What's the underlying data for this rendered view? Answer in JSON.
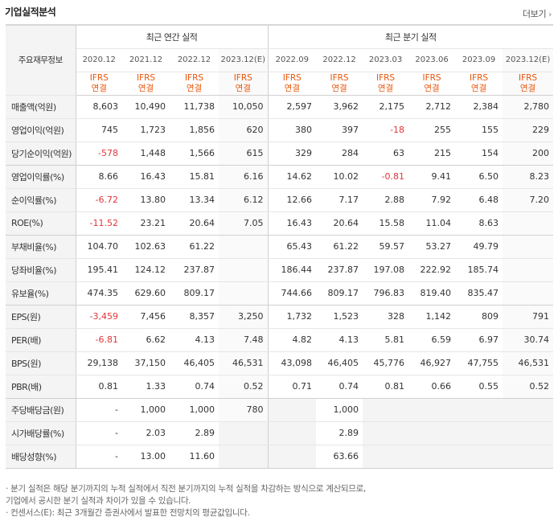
{
  "title": "기업실적분석",
  "more_label": "더보기",
  "header": {
    "row_header": "주요재무정보",
    "annual_group": "최근 연간 실적",
    "quarter_group": "최근 분기 실적",
    "periods": [
      "2020.12",
      "2021.12",
      "2022.12",
      "2023.12(E)",
      "2022.09",
      "2022.12",
      "2023.03",
      "2023.06",
      "2023.09",
      "2023.12(E)"
    ],
    "ifrs_top": "IFRS",
    "ifrs_bottom": "연결"
  },
  "rows": [
    {
      "label": "매출액(억원)",
      "values": [
        "8,603",
        "10,490",
        "11,738",
        "10,050",
        "2,597",
        "3,962",
        "2,175",
        "2,712",
        "2,384",
        "2,780"
      ]
    },
    {
      "label": "영업이익(억원)",
      "values": [
        "745",
        "1,723",
        "1,856",
        "620",
        "380",
        "397",
        "-18",
        "255",
        "155",
        "229"
      ]
    },
    {
      "label": "당기순이익(억원)",
      "values": [
        "-578",
        "1,448",
        "1,566",
        "615",
        "329",
        "284",
        "63",
        "215",
        "154",
        "200"
      ]
    },
    {
      "label": "영업이익률(%)",
      "values": [
        "8.66",
        "16.43",
        "15.81",
        "6.16",
        "14.62",
        "10.02",
        "-0.81",
        "9.41",
        "6.50",
        "8.23"
      ]
    },
    {
      "label": "순이익률(%)",
      "values": [
        "-6.72",
        "13.80",
        "13.34",
        "6.12",
        "12.66",
        "7.17",
        "2.88",
        "7.92",
        "6.48",
        "7.20"
      ]
    },
    {
      "label": "ROE(%)",
      "values": [
        "-11.52",
        "23.21",
        "20.64",
        "7.05",
        "16.43",
        "20.64",
        "15.58",
        "11.04",
        "8.63",
        ""
      ]
    },
    {
      "label": "부채비율(%)",
      "values": [
        "104.70",
        "102.63",
        "61.22",
        "",
        "65.43",
        "61.22",
        "59.57",
        "53.27",
        "49.79",
        ""
      ]
    },
    {
      "label": "당좌비율(%)",
      "values": [
        "195.41",
        "124.12",
        "237.87",
        "",
        "186.44",
        "237.87",
        "197.08",
        "222.92",
        "185.74",
        ""
      ]
    },
    {
      "label": "유보율(%)",
      "values": [
        "474.35",
        "629.60",
        "809.17",
        "",
        "744.66",
        "809.17",
        "796.83",
        "819.40",
        "835.47",
        ""
      ]
    },
    {
      "label": "EPS(원)",
      "values": [
        "-3,459",
        "7,456",
        "8,357",
        "3,250",
        "1,732",
        "1,523",
        "328",
        "1,142",
        "809",
        "791"
      ]
    },
    {
      "label": "PER(배)",
      "values": [
        "-6.81",
        "6.62",
        "4.13",
        "7.48",
        "4.82",
        "4.13",
        "5.81",
        "6.59",
        "6.97",
        "30.74"
      ]
    },
    {
      "label": "BPS(원)",
      "values": [
        "29,138",
        "37,150",
        "46,405",
        "46,531",
        "43,098",
        "46,405",
        "45,776",
        "46,927",
        "47,755",
        "46,531"
      ]
    },
    {
      "label": "PBR(배)",
      "values": [
        "0.81",
        "1.33",
        "0.74",
        "0.52",
        "0.71",
        "0.74",
        "0.81",
        "0.66",
        "0.55",
        "0.52"
      ]
    },
    {
      "label": "주당배당금(원)",
      "values": [
        "-",
        "1,000",
        "1,000",
        "780",
        "",
        "1,000",
        "",
        "",
        "",
        ""
      ]
    },
    {
      "label": "시가배당률(%)",
      "values": [
        "-",
        "2.03",
        "2.89",
        "",
        "",
        "2.89",
        "",
        "",
        "",
        ""
      ]
    },
    {
      "label": "배당성향(%)",
      "values": [
        "-",
        "13.00",
        "11.60",
        "",
        "",
        "63.66",
        "",
        "",
        "",
        ""
      ]
    }
  ],
  "notes": [
    "· 분기 실적은 해당 분기까지의 누적 실적에서 직전 분기까지의 누적 실적을 차감하는 방식으로 계산되므로,",
    "   기업에서 공시한 분기 실적과 차이가 있을 수 있습니다.",
    "· 컨센서스(E): 최근 3개월간 증권사에서 발표한 전망치의 평균값입니다."
  ],
  "colors": {
    "negative": "#e0373b",
    "ifrs": "#e8560b",
    "label_bg": "#f4f4f4"
  }
}
